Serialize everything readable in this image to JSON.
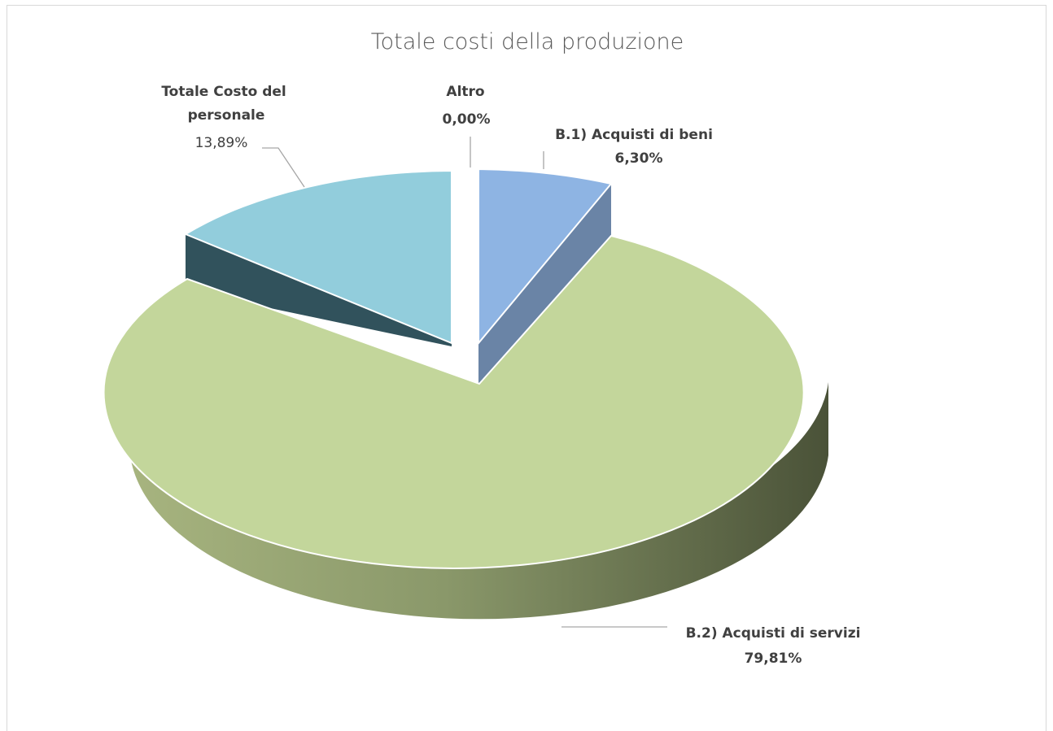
{
  "chart_data": {
    "type": "pie",
    "title": "Totale costi della produzione",
    "slices": [
      {
        "label": "B.1)  Acquisti di beni",
        "value": 6.3,
        "value_label": "6,30%",
        "color": "#8eb4e3",
        "side_color": "#6a84a6"
      },
      {
        "label": "B.2)  Acquisti di servizi",
        "value": 79.81,
        "value_label": "79,81%",
        "color": "#c3d69b",
        "side_color": "#7f8f5c"
      },
      {
        "label": "Totale Costo del personale",
        "value": 13.89,
        "value_label": "13,89%",
        "color": "#92cddc",
        "side_color": "#31525c"
      },
      {
        "label": "Altro",
        "value": 0.0,
        "value_label": "0,00%",
        "color": "#f79646",
        "side_color": "#b46b2f"
      }
    ],
    "style": "3d-exploded",
    "legend": "none"
  }
}
